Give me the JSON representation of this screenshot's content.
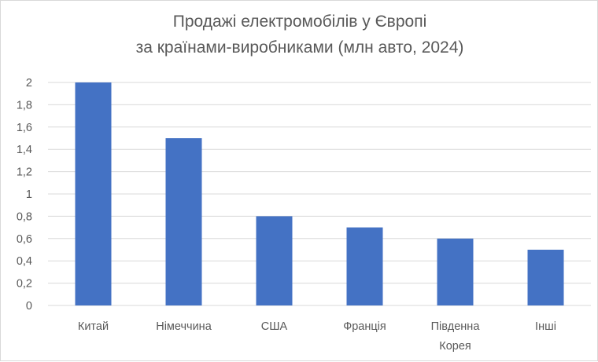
{
  "chart_data": {
    "type": "bar",
    "title_lines": [
      "Продажі електромобілів у Європі",
      "за країнами-виробниками (млн авто, 2024)"
    ],
    "categories": [
      [
        "Китай"
      ],
      [
        "Німеччина"
      ],
      [
        "США"
      ],
      [
        "Франція"
      ],
      [
        "Південна",
        "Корея"
      ],
      [
        "Інші"
      ]
    ],
    "values": [
      2.0,
      1.5,
      0.8,
      0.7,
      0.6,
      0.5
    ],
    "ylim": [
      0,
      2
    ],
    "yticks": [
      "0",
      "0,2",
      "0,4",
      "0,6",
      "0,8",
      "1",
      "1,2",
      "1,4",
      "1,6",
      "1,8",
      "2"
    ],
    "grid": true,
    "legend": "none",
    "colors": {
      "bar": "#4472C4",
      "grid": "#d9d9d9",
      "text": "#595959"
    }
  }
}
